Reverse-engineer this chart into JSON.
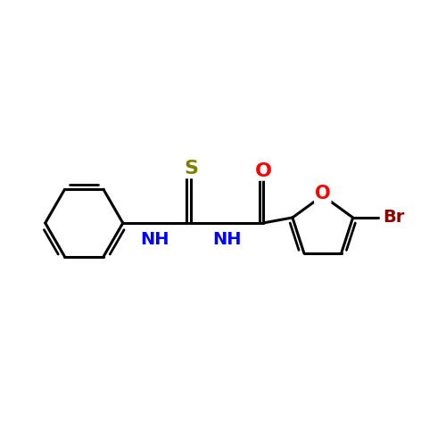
{
  "bg_color": "#ffffff",
  "bond_color": "#000000",
  "bond_width": 2.2,
  "atom_colors": {
    "N": "#0000ff",
    "O": "#ff0000",
    "S": "#808000",
    "Br": "#8b0000",
    "C": "#000000"
  },
  "font_size": 14,
  "fig_size": [
    5.0,
    5.0
  ],
  "dpi": 100
}
